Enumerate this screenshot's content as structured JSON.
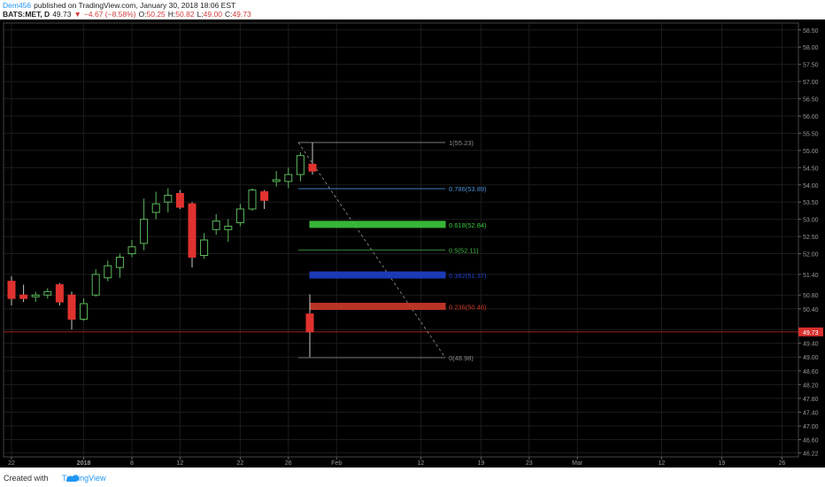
{
  "header": {
    "user": "Dem456",
    "published": "published on TradingView.com, January 30, 2018 18:06 EST",
    "symbol": "BATS:MET, D",
    "last": "49.73",
    "arrow": "▼",
    "change": "−4.67 (−8.58%)",
    "o_label": "O:",
    "o_value": "50.25",
    "h_label": "H:",
    "h_value": "50.82",
    "l_label": "L:",
    "l_value": "49.00",
    "c_label": "C:",
    "c_value": "49.73"
  },
  "footer": {
    "created": "Created with",
    "brand": "TradingView"
  },
  "colors": {
    "up": "#5cb85c",
    "down": "#e0322f",
    "current_price": "#d9312e",
    "fib_1": "#8c8c8c",
    "fib_0786": "#4a8fd6",
    "fib_0618": "#3ec93e",
    "fib_05": "#46b746",
    "fib_0382": "#2040c8",
    "fib_0236": "#cf3a2a",
    "fib_0": "#8c8c8c"
  },
  "chart_data": {
    "type": "candlestick",
    "ylim": [
      46.1,
      58.7
    ],
    "y_ticks": [
      "58.50",
      "58.00",
      "57.50",
      "57.00",
      "56.50",
      "56.00",
      "55.50",
      "55.00",
      "54.50",
      "54.00",
      "53.50",
      "53.00",
      "52.50",
      "52.00",
      "51.40",
      "50.80",
      "50.40",
      "49.80",
      "49.40",
      "49.00",
      "48.60",
      "48.20",
      "47.80",
      "47.40",
      "47.00",
      "46.60",
      "46.22"
    ],
    "x_ticks": [
      {
        "label": "22",
        "i": 0
      },
      {
        "label": "2018",
        "i": 6
      },
      {
        "label": "8",
        "i": 10
      },
      {
        "label": "12",
        "i": 14
      },
      {
        "label": "22",
        "i": 19
      },
      {
        "label": "26",
        "i": 23
      },
      {
        "label": "Feb",
        "i": 27
      },
      {
        "label": "12",
        "i": 34
      },
      {
        "label": "19",
        "i": 39
      },
      {
        "label": "23",
        "i": 43
      },
      {
        "label": "Mar",
        "i": 47
      },
      {
        "label": "12",
        "i": 54
      },
      {
        "label": "19",
        "i": 59
      },
      {
        "label": "26",
        "i": 64
      }
    ],
    "candles": [
      {
        "o": 51.2,
        "h": 51.35,
        "l": 50.5,
        "c": 50.7
      },
      {
        "o": 50.8,
        "h": 51.1,
        "l": 50.6,
        "c": 50.7
      },
      {
        "o": 50.75,
        "h": 50.9,
        "l": 50.6,
        "c": 50.8
      },
      {
        "o": 50.8,
        "h": 51.0,
        "l": 50.7,
        "c": 50.9
      },
      {
        "o": 51.1,
        "h": 51.15,
        "l": 50.5,
        "c": 50.6
      },
      {
        "o": 50.8,
        "h": 50.9,
        "l": 49.8,
        "c": 50.1
      },
      {
        "o": 50.1,
        "h": 50.7,
        "l": 50.05,
        "c": 50.55
      },
      {
        "o": 50.8,
        "h": 51.55,
        "l": 50.75,
        "c": 51.4
      },
      {
        "o": 51.3,
        "h": 51.8,
        "l": 51.2,
        "c": 51.65
      },
      {
        "o": 51.6,
        "h": 52.0,
        "l": 51.3,
        "c": 51.9
      },
      {
        "o": 52.0,
        "h": 52.4,
        "l": 51.9,
        "c": 52.2
      },
      {
        "o": 52.3,
        "h": 53.6,
        "l": 52.1,
        "c": 53.0
      },
      {
        "o": 53.2,
        "h": 53.8,
        "l": 53.0,
        "c": 53.45
      },
      {
        "o": 53.5,
        "h": 53.9,
        "l": 53.2,
        "c": 53.7
      },
      {
        "o": 53.75,
        "h": 53.85,
        "l": 53.3,
        "c": 53.35
      },
      {
        "o": 53.45,
        "h": 53.5,
        "l": 51.6,
        "c": 51.9
      },
      {
        "o": 51.95,
        "h": 52.6,
        "l": 51.85,
        "c": 52.4
      },
      {
        "o": 52.7,
        "h": 53.15,
        "l": 52.55,
        "c": 52.95
      },
      {
        "o": 52.7,
        "h": 53.0,
        "l": 52.35,
        "c": 52.8
      },
      {
        "o": 52.9,
        "h": 53.45,
        "l": 52.8,
        "c": 53.3
      },
      {
        "o": 53.3,
        "h": 53.9,
        "l": 53.25,
        "c": 53.85
      },
      {
        "o": 53.8,
        "h": 53.85,
        "l": 53.3,
        "c": 53.55
      },
      {
        "o": 54.1,
        "h": 54.4,
        "l": 53.95,
        "c": 54.15
      },
      {
        "o": 54.1,
        "h": 54.5,
        "l": 53.9,
        "c": 54.3
      },
      {
        "o": 54.3,
        "h": 54.95,
        "l": 54.1,
        "c": 54.85
      },
      {
        "o": 54.6,
        "h": 55.23,
        "l": 54.3,
        "c": 54.4
      },
      {
        "o": 50.25,
        "h": 50.82,
        "l": 49.0,
        "c": 49.73
      }
    ],
    "current_price": 49.73,
    "current_price_label": "49.73",
    "fib": [
      {
        "label": "1(55.23)",
        "value": 55.23,
        "key": "fib_1",
        "filled": false
      },
      {
        "label": "0.786(53.89)",
        "value": 53.89,
        "key": "fib_0786",
        "filled": false
      },
      {
        "label": "0.618(52.84)",
        "value": 52.84,
        "key": "fib_0618",
        "filled": true
      },
      {
        "label": "0.5(52.11)",
        "value": 52.11,
        "key": "fib_05",
        "filled": false
      },
      {
        "label": "0.382(51.37)",
        "value": 51.37,
        "key": "fib_0382",
        "filled": true
      },
      {
        "label": "0.236(50.46)",
        "value": 50.46,
        "key": "fib_0236",
        "filled": true
      },
      {
        "label": "0(48.98)",
        "value": 48.98,
        "key": "fib_0",
        "filled": false
      }
    ]
  }
}
